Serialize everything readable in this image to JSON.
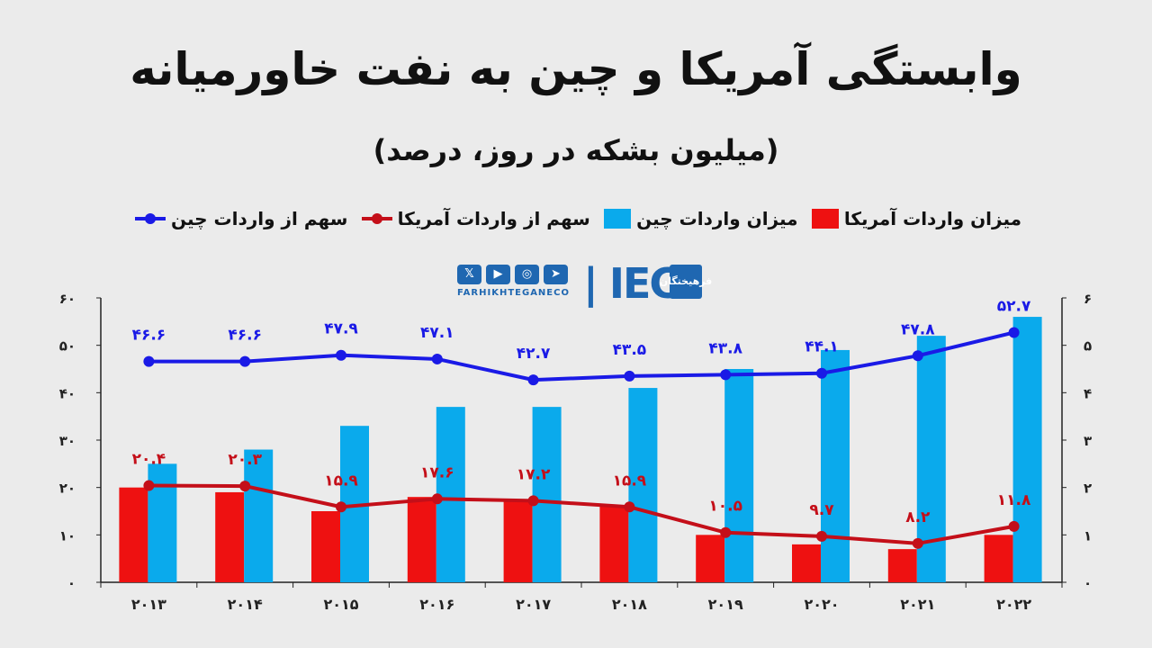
{
  "title": "وابستگی آمریکا و چین به نفت خاورمیانه",
  "subtitle": "(میلیون بشکه در روز، درصد)",
  "legend": {
    "us_volume": "میزان واردات آمریکا",
    "china_volume": "میزان واردات چین",
    "us_share": "سهم از واردات آمریکا",
    "china_share": "سهم از واردات چین"
  },
  "brand": {
    "name": "IEC",
    "handle": "FARHIKHTEGANECO",
    "badge": "فرهیختگان",
    "social_icons": [
      "x-icon",
      "youtube-icon",
      "instagram-icon",
      "telegram-icon"
    ]
  },
  "colors": {
    "us": "#ee1111",
    "china": "#0aaaec",
    "us_line": "#c40f19",
    "china_line": "#1a1ae6",
    "background": "#ebebeb"
  },
  "chart_data": {
    "type": "bar",
    "categories": [
      "۲۰۱۳",
      "۲۰۱۴",
      "۲۰۱۵",
      "۲۰۱۶",
      "۲۰۱۷",
      "۲۰۱۸",
      "۲۰۱۹",
      "۲۰۲۰",
      "۲۰۲۱",
      "۲۰۲۲"
    ],
    "series": [
      {
        "name": "میزان واردات آمریکا",
        "type": "bar",
        "axis": "right",
        "color": "#ee1111",
        "values": [
          2.0,
          1.9,
          1.5,
          1.8,
          1.7,
          1.6,
          1.0,
          0.8,
          0.7,
          1.0
        ]
      },
      {
        "name": "میزان واردات چین",
        "type": "bar",
        "axis": "right",
        "color": "#0aaaec",
        "values": [
          2.5,
          2.8,
          3.3,
          3.7,
          3.7,
          4.1,
          4.5,
          4.9,
          5.2,
          5.6
        ]
      },
      {
        "name": "سهم از واردات آمریکا",
        "type": "line",
        "axis": "left",
        "color": "#c40f19",
        "values": [
          20.4,
          20.3,
          15.9,
          17.6,
          17.2,
          15.9,
          10.5,
          9.7,
          8.2,
          11.8
        ],
        "labels": [
          "۲۰.۴",
          "۲۰.۳",
          "۱۵.۹",
          "۱۷.۶",
          "۱۷.۲",
          "۱۵.۹",
          "۱۰.۵",
          "۹.۷",
          "۸.۲",
          "۱۱.۸"
        ]
      },
      {
        "name": "سهم از واردات چین",
        "type": "line",
        "axis": "left",
        "color": "#1a1ae6",
        "values": [
          46.6,
          46.6,
          47.9,
          47.1,
          42.7,
          43.5,
          43.8,
          44.1,
          47.8,
          52.7
        ],
        "labels": [
          "۴۶.۶",
          "۴۶.۶",
          "۴۷.۹",
          "۴۷.۱",
          "۴۲.۷",
          "۴۳.۵",
          "۴۳.۸",
          "۴۴.۱",
          "۴۷.۸",
          "۵۲.۷"
        ]
      }
    ],
    "left_axis": {
      "ylim": [
        0,
        60
      ],
      "ticks": [
        "۰",
        "۱۰",
        "۲۰",
        "۳۰",
        "۴۰",
        "۵۰",
        "۶۰"
      ]
    },
    "right_axis": {
      "ylim": [
        0,
        6
      ],
      "ticks": [
        "۰",
        "۱",
        "۲",
        "۳",
        "۴",
        "۵",
        "۶"
      ]
    },
    "grid": false,
    "legend_position": "top"
  }
}
